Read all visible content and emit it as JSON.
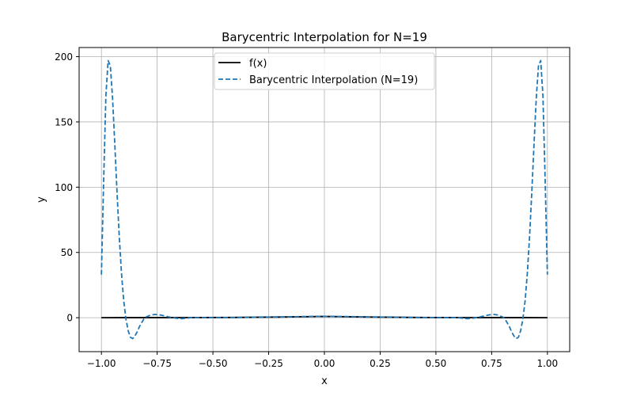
{
  "chart_data": {
    "type": "line",
    "title": "Barycentric Interpolation for N=19",
    "xlabel": "x",
    "ylabel": "y",
    "xlim": [
      -1.1,
      1.1
    ],
    "ylim": [
      -26,
      207
    ],
    "xticks": [
      -1.0,
      -0.75,
      -0.5,
      -0.25,
      0.0,
      0.25,
      0.5,
      0.75,
      1.0
    ],
    "xtick_labels": [
      "−1.00",
      "−0.75",
      "−0.50",
      "−0.25",
      "0.00",
      "0.25",
      "0.50",
      "0.75",
      "1.00"
    ],
    "yticks": [
      0,
      50,
      100,
      150,
      200
    ],
    "ytick_labels": [
      "0",
      "50",
      "100",
      "150",
      "200"
    ],
    "grid": true,
    "legend_position": "top-center",
    "series": [
      {
        "name": "f(x)",
        "style": "solid",
        "color": "#000000",
        "x": [
          -1.0,
          -0.9,
          -0.8,
          -0.6,
          -0.4,
          -0.2,
          0.0,
          0.2,
          0.4,
          0.6,
          0.8,
          0.9,
          1.0
        ],
        "y": [
          0.038,
          0.047,
          0.059,
          0.1,
          0.2,
          0.5,
          1.0,
          0.5,
          0.2,
          0.1,
          0.059,
          0.047,
          0.038
        ]
      },
      {
        "name": "Barycentric Interpolation (N=19)",
        "style": "dashed",
        "color": "#1f77b4",
        "x": [
          -1.0,
          -0.99,
          -0.98,
          -0.97,
          -0.96,
          -0.95,
          -0.94,
          -0.93,
          -0.92,
          -0.91,
          -0.9,
          -0.89,
          -0.88,
          -0.87,
          -0.86,
          -0.85,
          -0.84,
          -0.83,
          -0.82,
          -0.81,
          -0.8,
          -0.78,
          -0.76,
          -0.74,
          -0.72,
          -0.7,
          -0.68,
          -0.66,
          -0.64,
          -0.62,
          -0.6,
          -0.5,
          -0.4,
          -0.3,
          -0.2,
          -0.1,
          0.0,
          0.1,
          0.2,
          0.3,
          0.4,
          0.5,
          0.6,
          0.62,
          0.64,
          0.66,
          0.68,
          0.7,
          0.72,
          0.74,
          0.76,
          0.78,
          0.8,
          0.81,
          0.82,
          0.83,
          0.84,
          0.85,
          0.86,
          0.87,
          0.88,
          0.89,
          0.9,
          0.91,
          0.92,
          0.93,
          0.94,
          0.95,
          0.96,
          0.97,
          0.98,
          0.99,
          1.0
        ],
        "y": [
          33,
          105,
          170,
          197,
          193,
          168,
          133,
          96,
          62,
          34,
          13,
          -1,
          -10,
          -15,
          -16,
          -14,
          -11,
          -7,
          -4,
          -1,
          0.5,
          2,
          2.5,
          2.2,
          1.5,
          0.7,
          0,
          -0.5,
          -0.7,
          -0.4,
          0,
          0.1,
          0.2,
          0.5,
          0.6,
          0.9,
          1.0,
          0.9,
          0.6,
          0.5,
          0.2,
          0.1,
          0,
          -0.4,
          -0.7,
          -0.5,
          0,
          0.7,
          1.5,
          2.2,
          2.5,
          2,
          0.5,
          -1,
          -4,
          -7,
          -11,
          -14,
          -16,
          -15,
          -10,
          -1,
          13,
          34,
          62,
          96,
          133,
          168,
          193,
          197,
          170,
          105,
          33
        ]
      }
    ]
  }
}
